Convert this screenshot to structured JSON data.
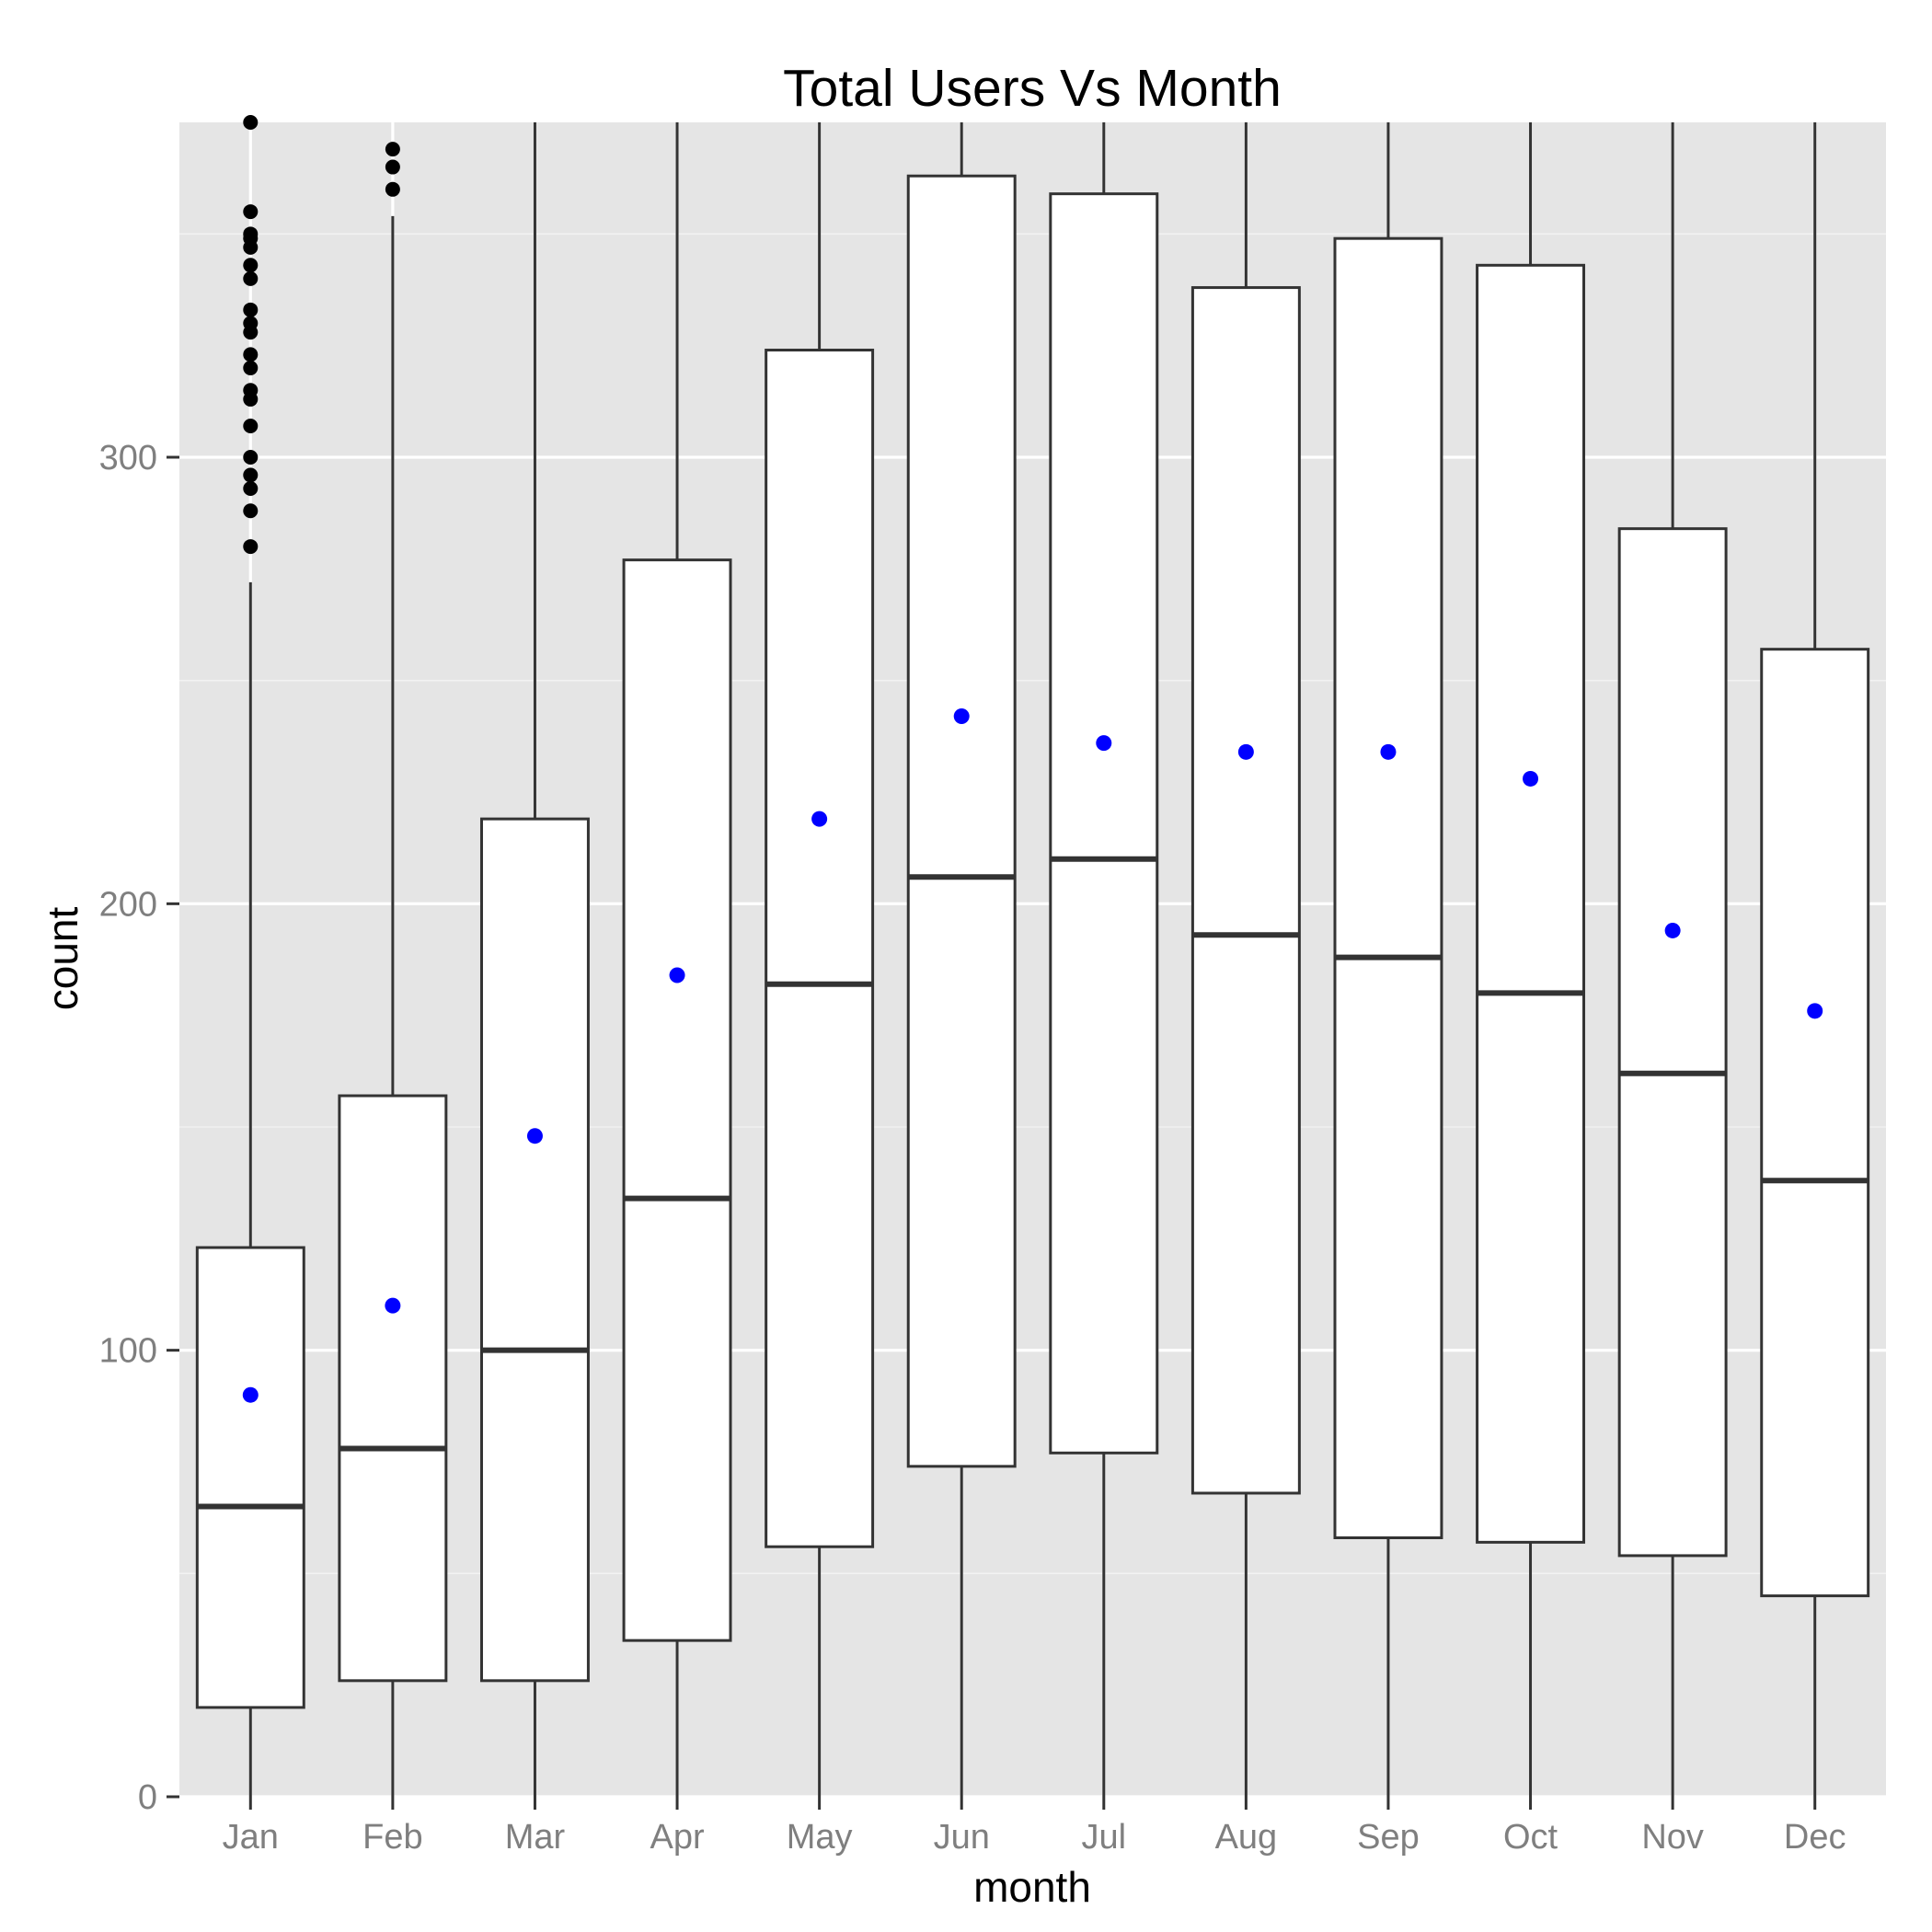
{
  "chart_data": {
    "type": "boxplot",
    "title": "Total Users Vs Month",
    "xlabel": "month",
    "ylabel": "count",
    "categories": [
      "Jan",
      "Feb",
      "Mar",
      "Apr",
      "May",
      "Jun",
      "Jul",
      "Aug",
      "Sep",
      "Oct",
      "Nov",
      "Dec"
    ],
    "ylim": [
      0,
      375
    ],
    "yticks": [
      0,
      100,
      200,
      300
    ],
    "grid": true,
    "legend": "none",
    "boxes": [
      {
        "category": "Jan",
        "q1": 20,
        "median": 65,
        "q3": 123,
        "whisker_low": 0,
        "whisker_high": 272,
        "mean": 90,
        "outliers": [
          280,
          288,
          293,
          296,
          300,
          307,
          313,
          315,
          320,
          323,
          328,
          330,
          333,
          340,
          343,
          347,
          349,
          350,
          355,
          375
        ]
      },
      {
        "category": "Feb",
        "q1": 26,
        "median": 78,
        "q3": 157,
        "whisker_low": 0,
        "whisker_high": 354,
        "mean": 110,
        "outliers": [
          360,
          365,
          369
        ]
      },
      {
        "category": "Mar",
        "q1": 26,
        "median": 100,
        "q3": 219,
        "whisker_low": 0,
        "whisker_high": 375,
        "mean": 148,
        "outliers": []
      },
      {
        "category": "Apr",
        "q1": 35,
        "median": 134,
        "q3": 277,
        "whisker_low": 0,
        "whisker_high": 375,
        "mean": 184,
        "outliers": []
      },
      {
        "category": "May",
        "q1": 56,
        "median": 182,
        "q3": 324,
        "whisker_low": 0,
        "whisker_high": 375,
        "mean": 219,
        "outliers": []
      },
      {
        "category": "Jun",
        "q1": 74,
        "median": 206,
        "q3": 363,
        "whisker_low": 0,
        "whisker_high": 375,
        "mean": 242,
        "outliers": []
      },
      {
        "category": "Jul",
        "q1": 77,
        "median": 210,
        "q3": 359,
        "whisker_low": 0,
        "whisker_high": 375,
        "mean": 236,
        "outliers": []
      },
      {
        "category": "Aug",
        "q1": 68,
        "median": 193,
        "q3": 338,
        "whisker_low": 0,
        "whisker_high": 375,
        "mean": 234,
        "outliers": []
      },
      {
        "category": "Sep",
        "q1": 58,
        "median": 188,
        "q3": 349,
        "whisker_low": 0,
        "whisker_high": 375,
        "mean": 234,
        "outliers": []
      },
      {
        "category": "Oct",
        "q1": 57,
        "median": 180,
        "q3": 343,
        "whisker_low": 0,
        "whisker_high": 375,
        "mean": 228,
        "outliers": []
      },
      {
        "category": "Nov",
        "q1": 54,
        "median": 162,
        "q3": 284,
        "whisker_low": 0,
        "whisker_high": 375,
        "mean": 194,
        "outliers": []
      },
      {
        "category": "Dec",
        "q1": 45,
        "median": 138,
        "q3": 257,
        "whisker_low": 0,
        "whisker_high": 375,
        "mean": 176,
        "outliers": []
      }
    ],
    "colors": {
      "panel_background": "#e5e5e5",
      "grid_major": "#ffffff",
      "grid_minor": "#f2f2f2",
      "box_fill": "#ffffff",
      "box_stroke": "#333333",
      "outlier": "#000000",
      "mean_point": "#0000ff",
      "tick_label": "#7f7f7f",
      "text": "#000000"
    }
  }
}
